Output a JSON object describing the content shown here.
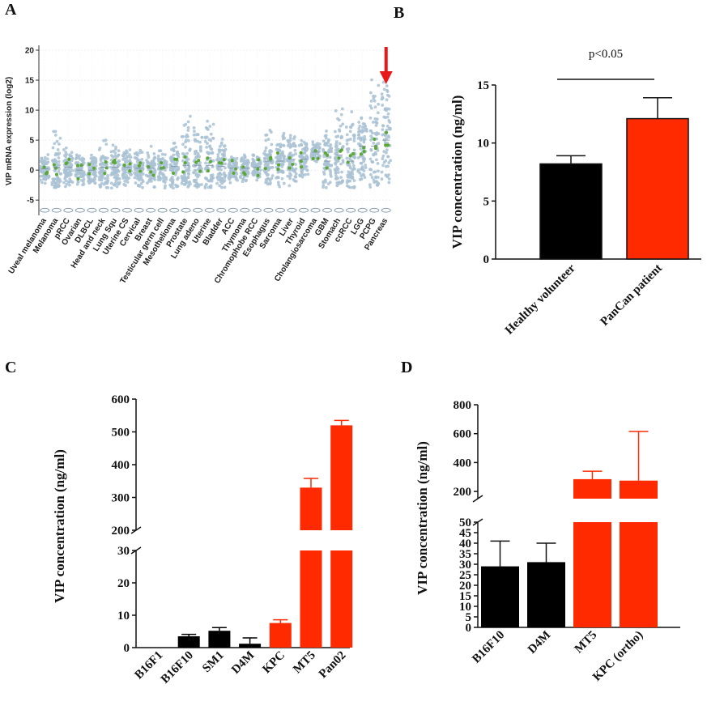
{
  "panels": {
    "a": "A",
    "b": "B",
    "c": "C",
    "d": "D"
  },
  "colors": {
    "black_bar": "#000000",
    "red_bar": "#ff2a00",
    "dot": "#a9c2d4",
    "dot_green": "#5aa832",
    "arrow": "#e8191b"
  },
  "chart_data": [
    {
      "id": "A",
      "type": "scatter",
      "ylabel": "VIP mRNA expression (log2)",
      "ylim": [
        -7,
        20
      ],
      "yticks": [
        -5,
        0,
        5,
        10,
        15,
        20
      ],
      "grid": true,
      "categories": [
        "Uveal melanoma",
        "Melanoma",
        "pRCC",
        "Ovarian",
        "DLBCL",
        "Head and neck",
        "Lung Squ",
        "Uterine CS",
        "Cervical",
        "Breast",
        "Testicular germ cell",
        "Mesothelioma",
        "Prostate",
        "Lung adeno",
        "Uterine",
        "Bladder",
        "ACC",
        "Thymoma",
        "Chromophobe RCC",
        "Esophagus",
        "Sarcoma",
        "Liver",
        "Thyroid",
        "Cholangiosarcoma",
        "GBM",
        "Stomach",
        "ccRCC",
        "LGG",
        "PCPG",
        "Pancreas"
      ],
      "medians": [
        0.2,
        0.5,
        0.5,
        0,
        0,
        0.5,
        0.5,
        0.5,
        0.3,
        0.3,
        0.3,
        0.6,
        0.8,
        0.8,
        0.8,
        0.6,
        0.3,
        0.3,
        0.5,
        1.5,
        1.5,
        1.8,
        1.8,
        3,
        1.5,
        2.5,
        1.5,
        4,
        4,
        5
      ],
      "maxima": [
        3,
        8,
        4,
        3,
        3,
        5.5,
        5,
        4,
        4,
        4.5,
        4,
        6,
        11,
        8,
        9,
        6,
        3,
        3,
        3,
        8,
        7,
        7,
        6,
        5,
        7,
        12,
        11,
        11,
        17,
        17
      ],
      "highlight": "Pancreas"
    },
    {
      "id": "B",
      "type": "bar",
      "categories": [
        "Healthy volunteer",
        "PanCan patient"
      ],
      "values": [
        8.2,
        12.1
      ],
      "errors": [
        0.7,
        1.8
      ],
      "colors": [
        "#000000",
        "#ff2a00"
      ],
      "ylabel": "VIP concentration (ng/ml)",
      "ylim": [
        0,
        15
      ],
      "yticks": [
        0,
        5,
        10,
        15
      ],
      "annotation": "p<0.05"
    },
    {
      "id": "C",
      "type": "bar",
      "categories": [
        "B16F1",
        "B16F10",
        "SM1",
        "D4M",
        "KPC",
        "MT5",
        "Pan02"
      ],
      "values": [
        0,
        3.5,
        5.2,
        1.2,
        7.6,
        330,
        520
      ],
      "errors": [
        0,
        0.6,
        1.0,
        1.8,
        1.0,
        28,
        15
      ],
      "colors": [
        "#000000",
        "#000000",
        "#000000",
        "#000000",
        "#ff2a00",
        "#ff2a00",
        "#ff2a00"
      ],
      "ylabel": "VIP concentration (ng/ml)",
      "ylim": [
        0,
        600
      ],
      "axis_break": [
        30,
        200
      ],
      "yticks": [
        0,
        10,
        20,
        30,
        200,
        300,
        400,
        500,
        600
      ]
    },
    {
      "id": "D",
      "type": "bar",
      "categories": [
        "B16F10",
        "D4M",
        "MT5",
        "KPC (ortho)"
      ],
      "values": [
        29,
        31,
        285,
        275
      ],
      "errors": [
        12,
        9,
        55,
        340
      ],
      "colors": [
        "#000000",
        "#000000",
        "#ff2a00",
        "#ff2a00"
      ],
      "ylabel": "VIP concentration (ng/ml)",
      "ylim": [
        0,
        800
      ],
      "axis_break": [
        50,
        150
      ],
      "yticks": [
        0,
        5,
        10,
        15,
        20,
        25,
        30,
        35,
        40,
        45,
        50,
        200,
        400,
        600,
        800
      ]
    }
  ]
}
